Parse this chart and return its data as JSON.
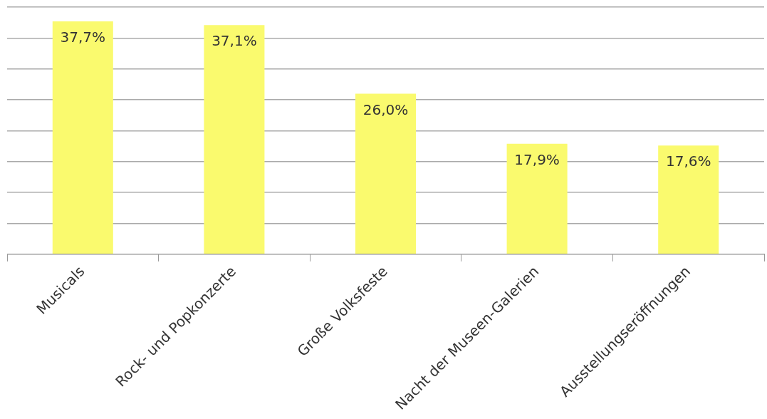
{
  "chart_data": {
    "type": "bar",
    "categories": [
      "Musicals",
      "Rock- und Popkonzerte",
      "Große Volksfeste",
      "Nacht der Museen-Galerien",
      "Ausstellungseröffnungen"
    ],
    "values": [
      37.7,
      37.1,
      26.0,
      17.9,
      17.6
    ],
    "value_labels": [
      "37,7%",
      "37,1%",
      "26,0%",
      "17,9%",
      "17,6%"
    ],
    "color": "#fafa6e",
    "ylim": [
      0,
      40
    ],
    "yticks": [
      {
        "value": 0,
        "label": null
      },
      {
        "value": 5,
        "label": null
      },
      {
        "value": 10,
        "label": null
      },
      {
        "value": 15,
        "label": null
      },
      {
        "value": 20,
        "label": null
      },
      {
        "value": 25,
        "label": null
      },
      {
        "value": 30,
        "label": null
      },
      {
        "value": 35,
        "label": null
      },
      {
        "value": 40,
        "label": null
      }
    ],
    "grid": "y",
    "tick_labels": "x",
    "legend": false
  }
}
